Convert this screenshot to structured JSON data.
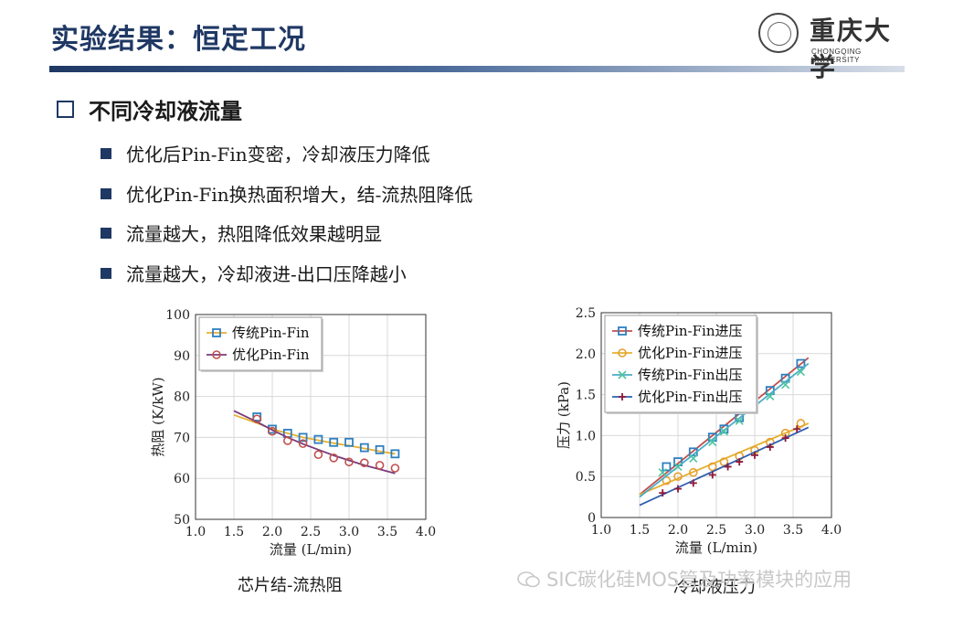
{
  "slide": {
    "title": "实验结果：恒定工况"
  },
  "logo": {
    "name": "重庆大学",
    "subtitle": "CHONGQING UNIVERSITY"
  },
  "section": {
    "heading": "不同冷却液流量"
  },
  "bullets": [
    "优化后Pin-Fin变密，冷却液压力降低",
    "优化Pin-Fin换热面积增大，结-流热阻降低",
    "流量越大，热阻降低效果越明显",
    "流量越大，冷却液进-出口压降越小"
  ],
  "captions": {
    "left": "芯片结-流热阻",
    "right": "冷却液压力"
  },
  "watermark": "SIC碳化硅MOS管及功率模块的应用",
  "chart_data": [
    {
      "type": "scatter",
      "xlabel": "流量 (L/min)",
      "ylabel": "热阻 (K/kW)",
      "xlim": [
        1.0,
        4.0
      ],
      "ylim": [
        50,
        100
      ],
      "xticks": [
        "1.0",
        "1.5",
        "2.0",
        "2.5",
        "3.0",
        "3.5",
        "4.0"
      ],
      "yticks": [
        "50",
        "60",
        "70",
        "80",
        "90",
        "100"
      ],
      "grid": true,
      "legend_position": "top-left",
      "series": [
        {
          "name": "传统Pin-Fin",
          "color": "#e6b030",
          "marker": "square",
          "marker_color": "#2f7fbf",
          "x": [
            1.8,
            2.0,
            2.2,
            2.4,
            2.6,
            2.8,
            3.0,
            3.2,
            3.4,
            3.6
          ],
          "values": [
            75,
            72,
            71,
            70,
            69.5,
            68.8,
            68.8,
            67.5,
            67,
            66
          ],
          "fit": {
            "x": [
              1.5,
              1.8,
              2.0,
              2.2,
              2.4,
              2.6,
              2.8,
              3.0,
              3.2,
              3.4,
              3.6
            ],
            "y": [
              75.5,
              73.5,
              72.0,
              71.0,
              70.0,
              69.3,
              68.6,
              68.0,
              67.3,
              66.6,
              66.0
            ]
          }
        },
        {
          "name": "优化Pin-Fin",
          "color": "#7a3a7a",
          "marker": "circle",
          "marker_color": "#c0504d",
          "x": [
            1.8,
            2.0,
            2.2,
            2.4,
            2.6,
            2.8,
            3.0,
            3.2,
            3.4,
            3.6
          ],
          "values": [
            74.5,
            71.5,
            69.2,
            68.5,
            65.8,
            65,
            64,
            63.8,
            63.2,
            62.5
          ],
          "fit": {
            "x": [
              1.5,
              1.8,
              2.0,
              2.2,
              2.4,
              2.6,
              2.8,
              3.0,
              3.2,
              3.4,
              3.6
            ],
            "y": [
              76.5,
              73.8,
              71.8,
              70.0,
              68.4,
              67.0,
              65.6,
              64.4,
              63.2,
              62.2,
              61.2
            ]
          }
        }
      ]
    },
    {
      "type": "scatter",
      "xlabel": "流量 (L/min)",
      "ylabel": "压力 (kPa)",
      "xlim": [
        1.0,
        4.0
      ],
      "ylim": [
        0,
        2.5
      ],
      "xticks": [
        "1.0",
        "1.5",
        "2.0",
        "2.5",
        "3.0",
        "3.5",
        "4.0"
      ],
      "yticks": [
        "0",
        "0.5",
        "1.0",
        "1.5",
        "2.0",
        "2.5"
      ],
      "grid": true,
      "legend_position": "top-left",
      "series": [
        {
          "name": "传统Pin-Fin进压",
          "color": "#c0504d",
          "marker": "square",
          "marker_color": "#2f7fbf",
          "x": [
            1.85,
            2.0,
            2.2,
            2.45,
            2.6,
            2.8,
            3.2,
            3.4,
            3.6
          ],
          "values": [
            0.62,
            0.68,
            0.8,
            0.98,
            1.08,
            1.22,
            1.55,
            1.7,
            1.88
          ],
          "fit": {
            "x": [
              1.5,
              3.7
            ],
            "y": [
              0.28,
              1.95
            ]
          }
        },
        {
          "name": "优化Pin-Fin进压",
          "color": "#e6b030",
          "marker": "circle",
          "marker_color": "#e6a030",
          "x": [
            1.85,
            2.0,
            2.2,
            2.45,
            2.6,
            2.8,
            3.0,
            3.2,
            3.4,
            3.6
          ],
          "values": [
            0.45,
            0.5,
            0.55,
            0.62,
            0.68,
            0.75,
            0.82,
            0.92,
            1.03,
            1.15
          ],
          "fit": {
            "x": [
              1.5,
              3.7
            ],
            "y": [
              0.28,
              1.15
            ]
          }
        },
        {
          "name": "传统Pin-Fin出压",
          "color": "#4bacc6",
          "marker": "cross",
          "marker_color": "#4bc6a0",
          "x": [
            1.8,
            2.0,
            2.2,
            2.45,
            2.6,
            2.8,
            3.2,
            3.4,
            3.6
          ],
          "values": [
            0.55,
            0.62,
            0.72,
            0.92,
            1.05,
            1.18,
            1.48,
            1.62,
            1.78
          ],
          "fit": {
            "x": [
              1.5,
              3.7
            ],
            "y": [
              0.25,
              1.88
            ]
          }
        },
        {
          "name": "优化Pin-Fin出压",
          "color": "#2f5fb0",
          "marker": "plus",
          "marker_color": "#8b1a3a",
          "x": [
            1.8,
            2.0,
            2.2,
            2.45,
            2.65,
            2.8,
            3.0,
            3.2,
            3.4,
            3.55
          ],
          "values": [
            0.3,
            0.35,
            0.42,
            0.52,
            0.62,
            0.68,
            0.76,
            0.86,
            0.97,
            1.08
          ],
          "fit": {
            "x": [
              1.5,
              3.7
            ],
            "y": [
              0.15,
              1.1
            ]
          }
        }
      ]
    }
  ]
}
